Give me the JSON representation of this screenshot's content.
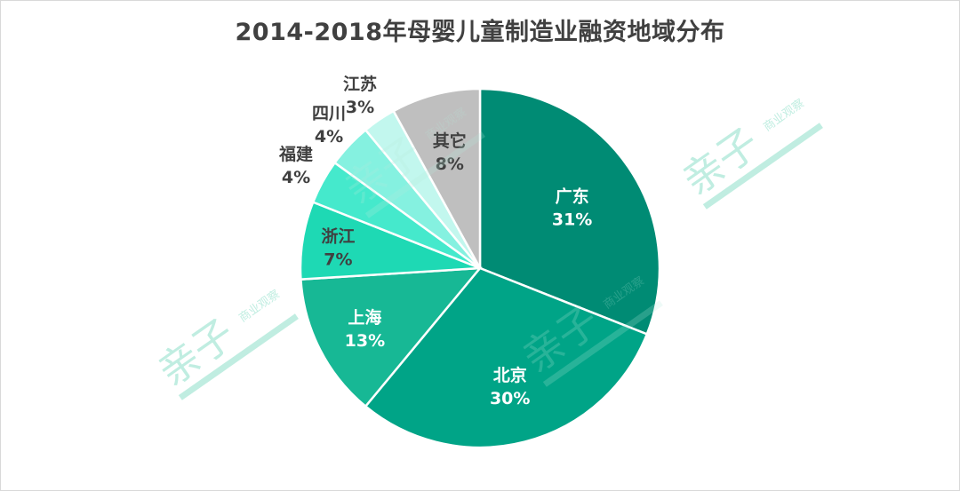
{
  "chart_data": {
    "type": "pie",
    "title": "2014-2018年母婴儿童制造业融资地域分布",
    "slices": [
      {
        "name": "广东",
        "value": 31,
        "label": "31%",
        "color": "#008b74",
        "text_color": "#ffffff"
      },
      {
        "name": "北京",
        "value": 30,
        "label": "30%",
        "color": "#00a487",
        "text_color": "#ffffff"
      },
      {
        "name": "上海",
        "value": 13,
        "label": "13%",
        "color": "#17b895",
        "text_color": "#ffffff"
      },
      {
        "name": "浙江",
        "value": 7,
        "label": "7%",
        "color": "#1ed9b4",
        "text_color": "#404040"
      },
      {
        "name": "福建",
        "value": 4,
        "label": "4%",
        "color": "#45e9cc",
        "text_color": "#404040"
      },
      {
        "name": "四川",
        "value": 4,
        "label": "4%",
        "color": "#85f1e0",
        "text_color": "#404040"
      },
      {
        "name": "江苏",
        "value": 3,
        "label": "3%",
        "color": "#c2f7ee",
        "text_color": "#404040"
      },
      {
        "name": "其它",
        "value": 8,
        "label": "8%",
        "color": "#bfbfbf",
        "text_color": "#404040"
      }
    ],
    "start_angle_deg": 0,
    "direction": "clockwise"
  },
  "watermark": {
    "text": "亲子",
    "subtext": "商业观察",
    "color": "#b6ebdc"
  }
}
